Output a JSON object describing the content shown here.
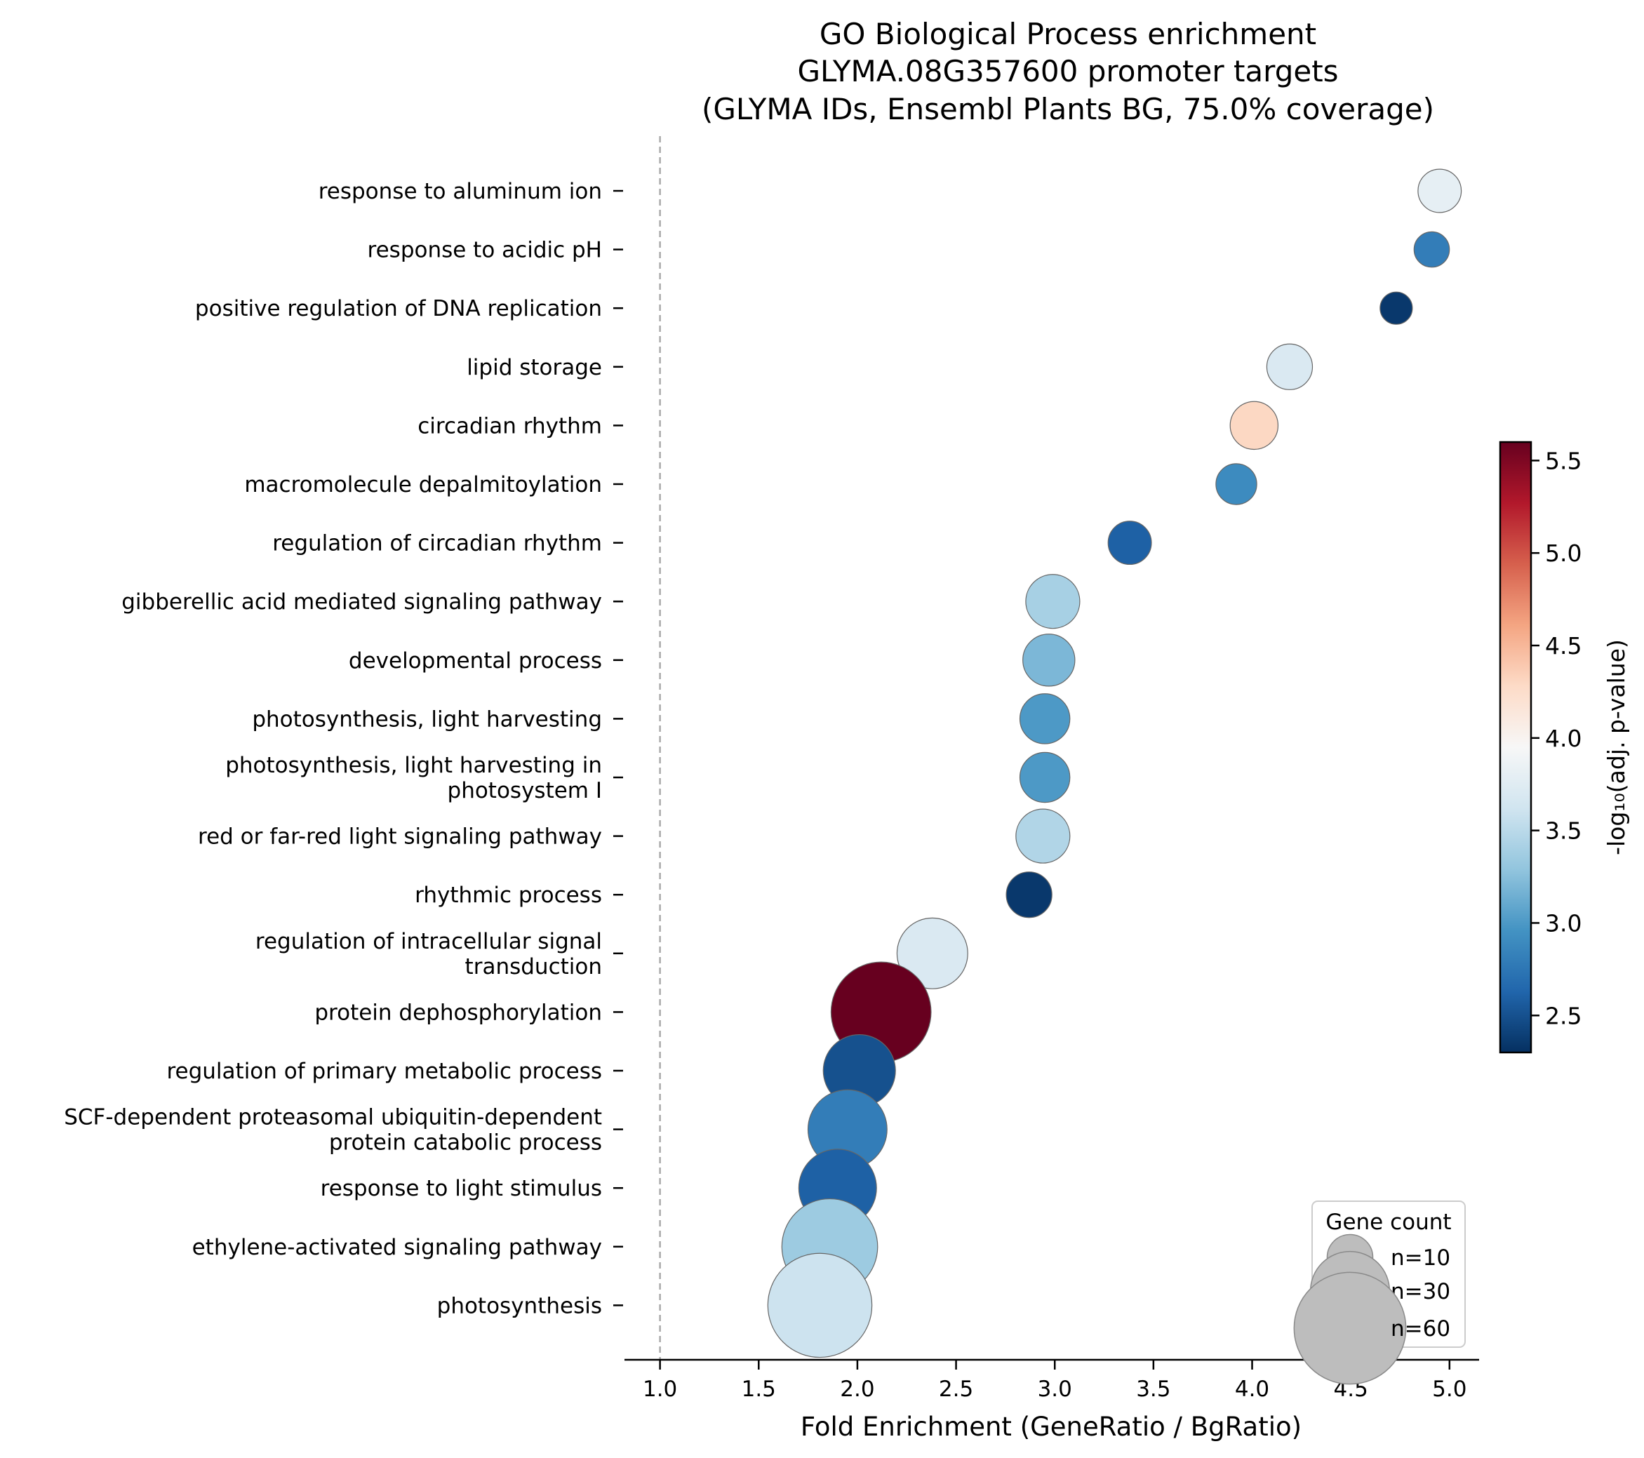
{
  "chart_data": {
    "type": "scatter",
    "title_lines": [
      "GO Biological Process enrichment",
      "GLYMA.08G357600 promoter targets",
      "(GLYMA IDs, Ensembl Plants BG, 75.0% coverage)"
    ],
    "xlabel": "Fold Enrichment (GeneRatio / BgRatio)",
    "xlim": [
      0.82,
      5.15
    ],
    "xticks": [
      "1.0",
      "1.5",
      "2.0",
      "2.5",
      "3.0",
      "3.5",
      "4.0",
      "4.5",
      "5.0"
    ],
    "reference_line_x": 1.0,
    "colorbar": {
      "label": "-log₁₀(adj. p-value)",
      "range": [
        2.3,
        5.6
      ],
      "ticks": [
        "2.5",
        "3.0",
        "3.5",
        "4.0",
        "4.5",
        "5.0",
        "5.5"
      ],
      "colormap": "RdBu_r"
    },
    "size_legend": {
      "title": "Gene count",
      "entries": [
        {
          "label": "n=10",
          "count": 10
        },
        {
          "label": "n=30",
          "count": 30
        },
        {
          "label": "n=60",
          "count": 60
        }
      ]
    },
    "points": [
      {
        "term": [
          "response to aluminum ion"
        ],
        "x": 4.95,
        "neglog10p": 3.8,
        "count": 9
      },
      {
        "term": [
          "response to acidic pH"
        ],
        "x": 4.91,
        "neglog10p": 2.8,
        "count": 6
      },
      {
        "term": [
          "positive regulation of DNA replication"
        ],
        "x": 4.73,
        "neglog10p": 2.35,
        "count": 5
      },
      {
        "term": [
          "lipid storage"
        ],
        "x": 4.19,
        "neglog10p": 3.7,
        "count": 10
      },
      {
        "term": [
          "circadian rhythm"
        ],
        "x": 4.01,
        "neglog10p": 4.3,
        "count": 11
      },
      {
        "term": [
          "macromolecule depalmitoylation"
        ],
        "x": 3.92,
        "neglog10p": 2.9,
        "count": 8
      },
      {
        "term": [
          "regulation of circadian rhythm"
        ],
        "x": 3.38,
        "neglog10p": 2.6,
        "count": 9
      },
      {
        "term": [
          "gibberellic acid mediated signaling pathway"
        ],
        "x": 2.99,
        "neglog10p": 3.4,
        "count": 14
      },
      {
        "term": [
          "developmental process"
        ],
        "x": 2.97,
        "neglog10p": 3.2,
        "count": 13
      },
      {
        "term": [
          "photosynthesis, light harvesting"
        ],
        "x": 2.95,
        "neglog10p": 3.0,
        "count": 12
      },
      {
        "term": [
          "photosynthesis, light harvesting in",
          "photosystem I"
        ],
        "x": 2.95,
        "neglog10p": 3.0,
        "count": 12
      },
      {
        "term": [
          "red or far-red light signaling pathway"
        ],
        "x": 2.94,
        "neglog10p": 3.45,
        "count": 14
      },
      {
        "term": [
          "rhythmic process"
        ],
        "x": 2.87,
        "neglog10p": 2.35,
        "count": 10
      },
      {
        "term": [
          "regulation of intracellular signal",
          "transduction"
        ],
        "x": 2.38,
        "neglog10p": 3.7,
        "count": 24
      },
      {
        "term": [
          "protein dephosphorylation"
        ],
        "x": 2.12,
        "neglog10p": 5.6,
        "count": 48
      },
      {
        "term": [
          "regulation of primary metabolic process"
        ],
        "x": 2.01,
        "neglog10p": 2.5,
        "count": 25
      },
      {
        "term": [
          "SCF-dependent proteasomal ubiquitin-dependent",
          "protein catabolic process"
        ],
        "x": 1.95,
        "neglog10p": 2.8,
        "count": 30
      },
      {
        "term": [
          "response to light stimulus"
        ],
        "x": 1.9,
        "neglog10p": 2.6,
        "count": 29
      },
      {
        "term": [
          "ethylene-activated signaling pathway"
        ],
        "x": 1.86,
        "neglog10p": 3.35,
        "count": 44
      },
      {
        "term": [
          "photosynthesis"
        ],
        "x": 1.81,
        "neglog10p": 3.6,
        "count": 52
      }
    ]
  }
}
